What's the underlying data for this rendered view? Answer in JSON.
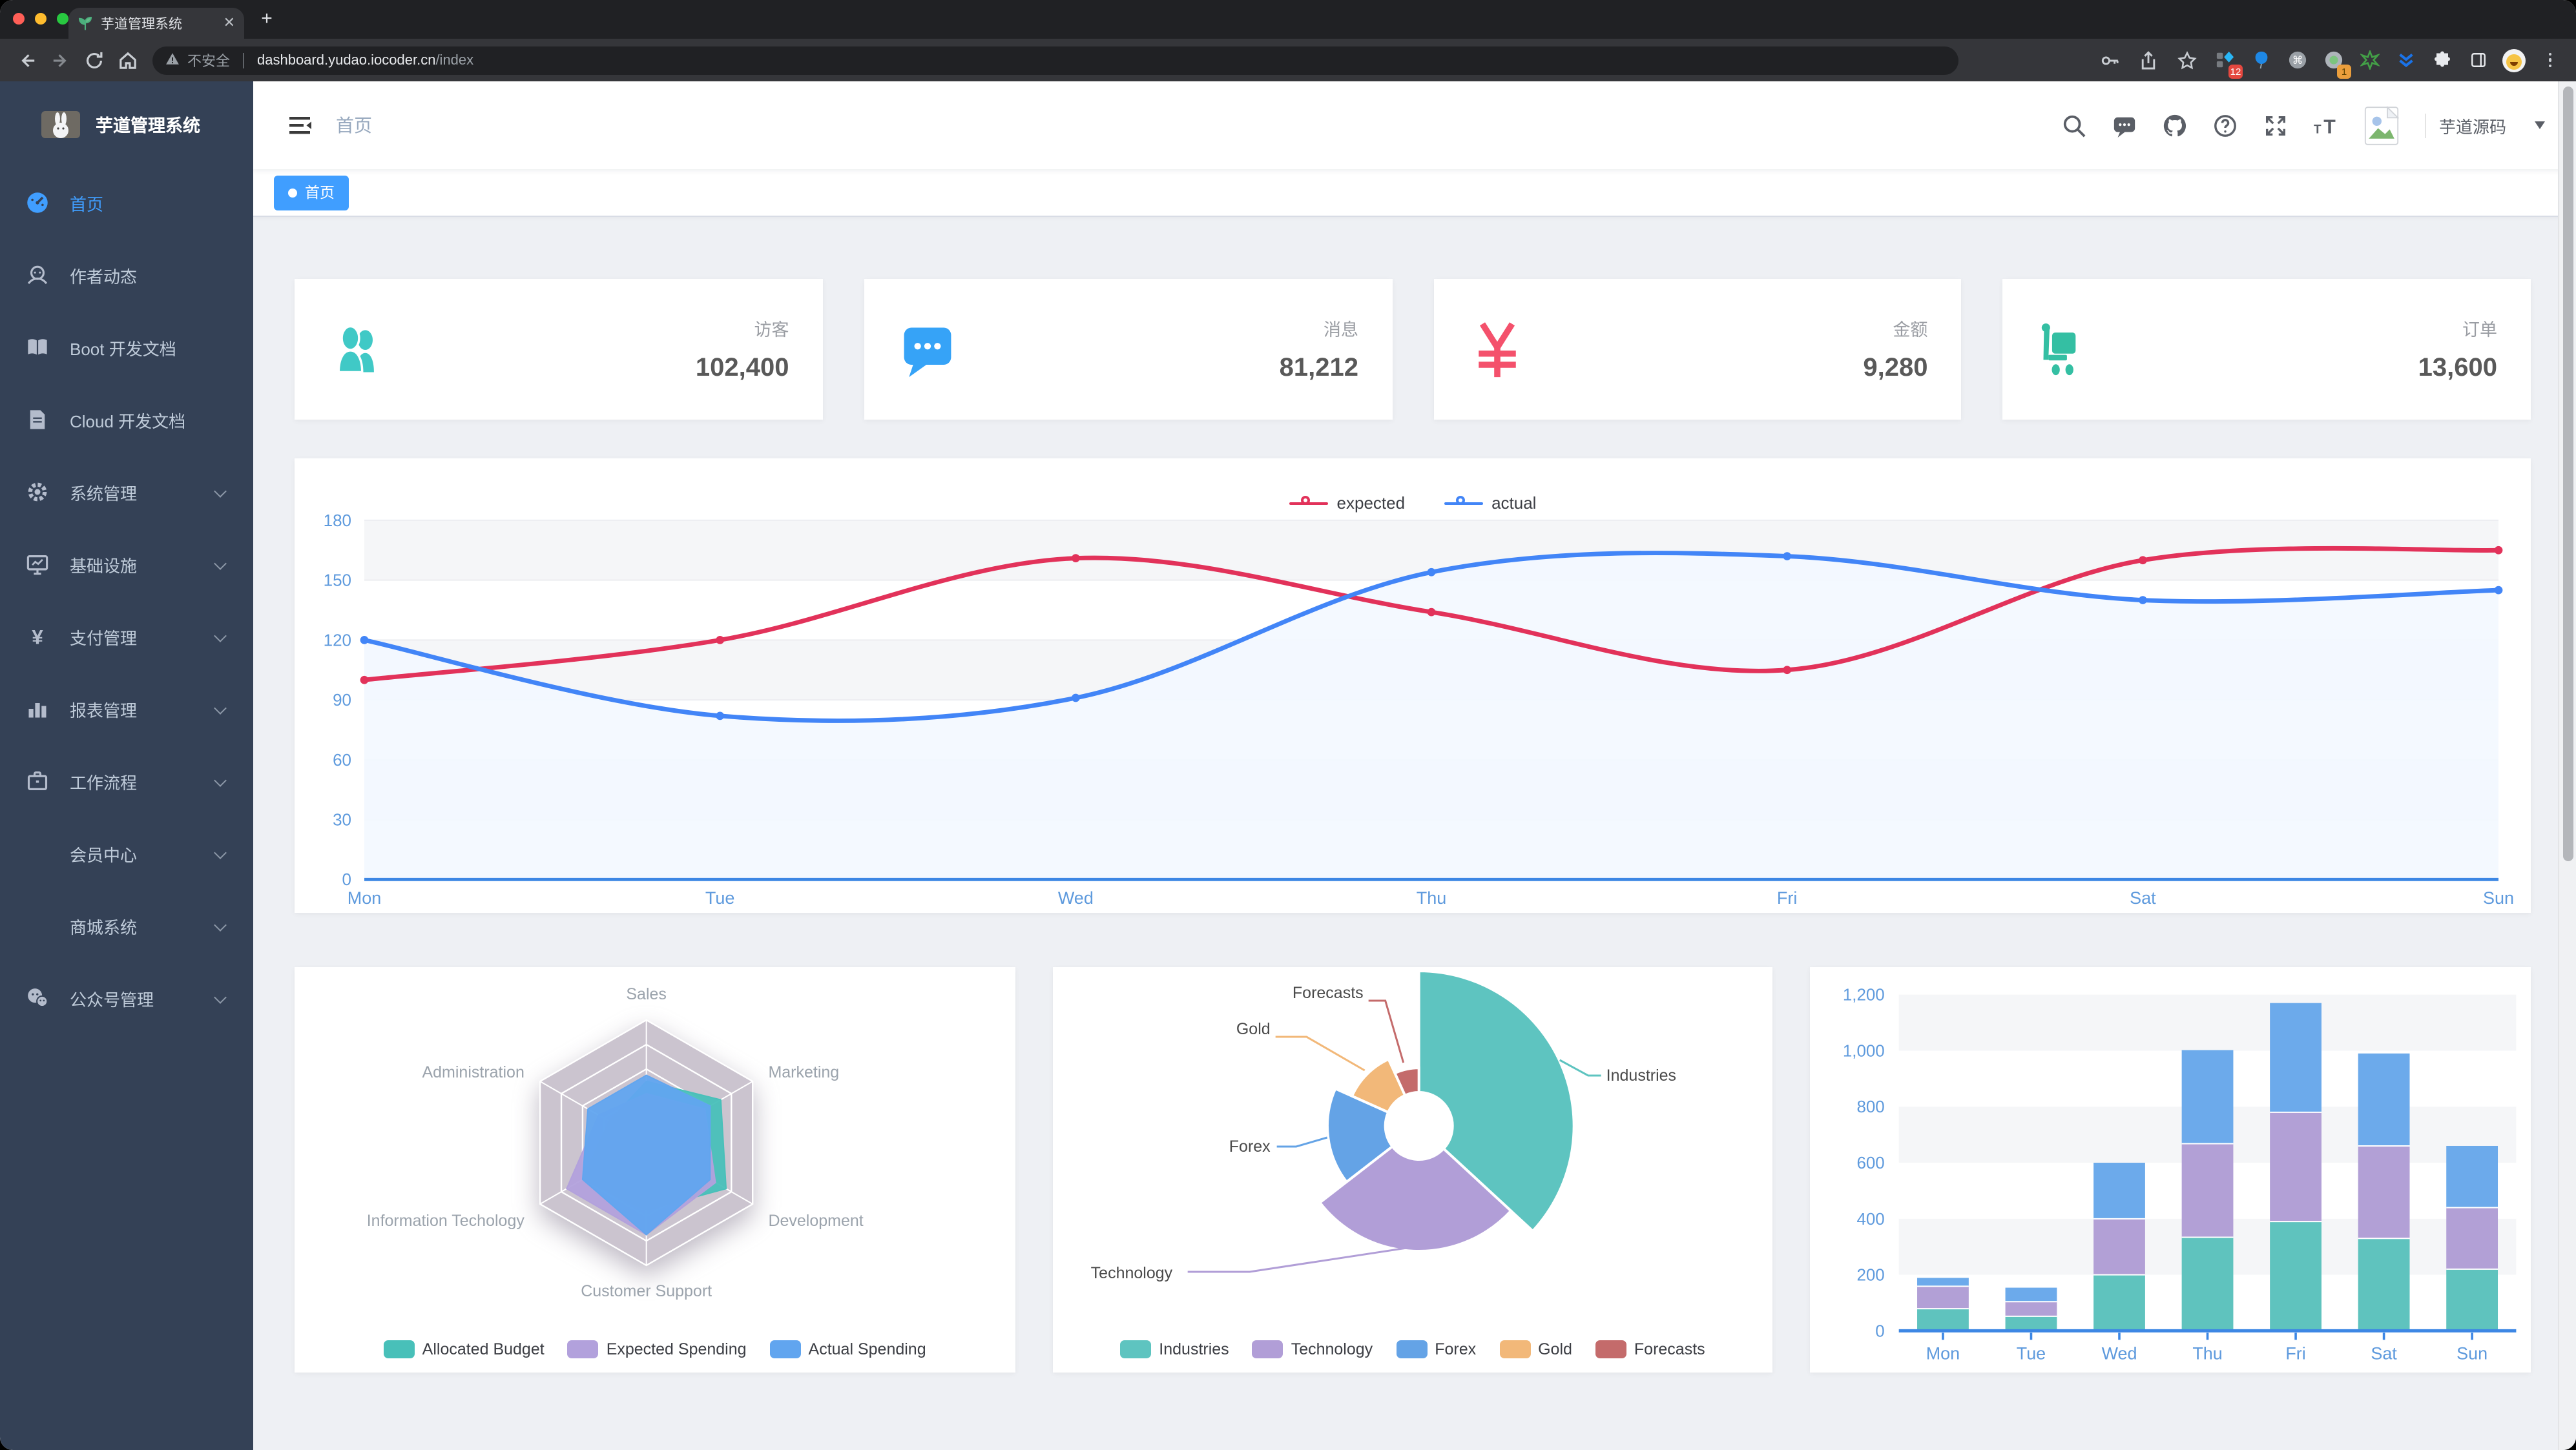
{
  "browser": {
    "tab_title": "芋道管理系统",
    "security_label": "不安全",
    "url_host": "dashboard.yudao.iocoder.cn",
    "url_path": "/index",
    "ext_badge_tag": "12",
    "ext_badge_circle": "1"
  },
  "sidebar": {
    "logo_title": "芋道管理系统",
    "items": [
      {
        "label": "首页",
        "icon": "dashboard-icon",
        "active": true,
        "arrow": false
      },
      {
        "label": "作者动态",
        "icon": "author-icon",
        "active": false,
        "arrow": false
      },
      {
        "label": "Boot 开发文档",
        "icon": "book-icon",
        "active": false,
        "arrow": false
      },
      {
        "label": "Cloud 开发文档",
        "icon": "document-icon",
        "active": false,
        "arrow": false
      },
      {
        "label": "系统管理",
        "icon": "gear-icon",
        "active": false,
        "arrow": true
      },
      {
        "label": "基础设施",
        "icon": "monitor-icon",
        "active": false,
        "arrow": true
      },
      {
        "label": "支付管理",
        "icon": "yen-icon",
        "active": false,
        "arrow": true
      },
      {
        "label": "报表管理",
        "icon": "barchart-icon",
        "active": false,
        "arrow": true
      },
      {
        "label": "工作流程",
        "icon": "briefcase-icon",
        "active": false,
        "arrow": true
      },
      {
        "label": "会员中心",
        "icon": null,
        "active": false,
        "arrow": true
      },
      {
        "label": "商城系统",
        "icon": null,
        "active": false,
        "arrow": true
      },
      {
        "label": "公众号管理",
        "icon": "wechat-icon",
        "active": false,
        "arrow": true
      }
    ]
  },
  "navbar": {
    "breadcrumb": "首页",
    "username": "芋道源码"
  },
  "tags": [
    {
      "label": "首页",
      "active": true
    }
  ],
  "stats": [
    {
      "label": "访客",
      "value": "102,400",
      "icon": "peoples-icon",
      "color": "#40c9c6"
    },
    {
      "label": "消息",
      "value": "81,212",
      "icon": "message-icon",
      "color": "#36a3f7"
    },
    {
      "label": "金额",
      "value": "9,280",
      "icon": "money-icon",
      "color": "#f4516c"
    },
    {
      "label": "订单",
      "value": "13,600",
      "icon": "cart-icon",
      "color": "#34bfa3"
    }
  ],
  "chart_data": [
    {
      "type": "line",
      "x": [
        "Mon",
        "Tue",
        "Wed",
        "Thu",
        "Fri",
        "Sat",
        "Sun"
      ],
      "series": [
        {
          "name": "expected",
          "color": "#e2325a",
          "values": [
            100,
            120,
            161,
            134,
            105,
            160,
            165
          ]
        },
        {
          "name": "actual",
          "color": "#4285f7",
          "area": "#f3f8ff",
          "values": [
            120,
            82,
            91,
            154,
            162,
            140,
            145
          ]
        }
      ],
      "ylim": [
        0,
        180
      ],
      "yticks": [
        0,
        30,
        60,
        90,
        120,
        150,
        180
      ],
      "legend_position": "top",
      "grid": true
    },
    {
      "type": "radar",
      "indicators": [
        {
          "name": "Sales",
          "max": 10000
        },
        {
          "name": "Administration",
          "max": 20000
        },
        {
          "name": "Information Techology",
          "max": 20000
        },
        {
          "name": "Customer Support",
          "max": 20000
        },
        {
          "name": "Development",
          "max": 20000
        },
        {
          "name": "Marketing",
          "max": 20000
        }
      ],
      "series": [
        {
          "name": "Allocated Budget",
          "color": "#48c0b9",
          "values": [
            5000,
            7000,
            12000,
            11000,
            15000,
            14000
          ]
        },
        {
          "name": "Expected Spending",
          "color": "#b2a1dc",
          "values": [
            4000,
            9000,
            15000,
            15000,
            13000,
            11000
          ]
        },
        {
          "name": "Actual Spending",
          "color": "#61a5ef",
          "values": [
            5500,
            11000,
            12000,
            15000,
            12000,
            12000
          ]
        }
      ],
      "legend_position": "bottom"
    },
    {
      "type": "pie",
      "rose": true,
      "slices": [
        {
          "name": "Industries",
          "value": 320,
          "color": "#5ec4c0"
        },
        {
          "name": "Technology",
          "value": 240,
          "color": "#b19ed7"
        },
        {
          "name": "Forex",
          "value": 149,
          "color": "#64a3e6"
        },
        {
          "name": "Gold",
          "value": 100,
          "color": "#f2b879"
        },
        {
          "name": "Forecasts",
          "value": 59,
          "color": "#c46b6b"
        }
      ],
      "legend_position": "bottom"
    },
    {
      "type": "bar",
      "stacked": true,
      "categories": [
        "Mon",
        "Tue",
        "Wed",
        "Thu",
        "Fri",
        "Sat",
        "Sun"
      ],
      "series": [
        {
          "color": "#5fc3be",
          "values": [
            79,
            52,
            200,
            334,
            390,
            330,
            220
          ]
        },
        {
          "color": "#b2a0d6",
          "values": [
            80,
            52,
            200,
            334,
            390,
            330,
            220
          ]
        },
        {
          "color": "#6caaeb",
          "values": [
            30,
            50,
            200,
            334,
            390,
            330,
            220
          ]
        }
      ],
      "ylim": [
        0,
        1200
      ],
      "ytick_labels": [
        "0",
        "200",
        "400",
        "600",
        "800",
        "1,000",
        "1,200"
      ]
    }
  ]
}
